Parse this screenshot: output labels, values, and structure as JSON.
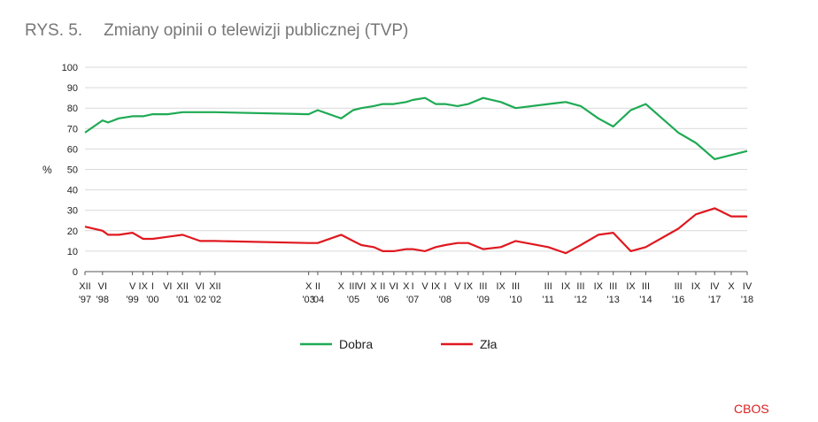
{
  "figure_label": "RYS. 5.",
  "title": "Zmiany opinii o telewizji publicznej (TVP)",
  "source": "CBOS",
  "colors": {
    "good": "#1faa54",
    "bad": "#e0181f",
    "grid": "#d9d9d9",
    "axis": "#555555",
    "title": "#777777",
    "text": "#222222"
  },
  "chart_data": {
    "type": "line",
    "title": "Zmiany opinii o telewizji publicznej (TVP)",
    "ylabel": "%",
    "ylim": [
      0,
      100
    ],
    "yticks": [
      0,
      10,
      20,
      30,
      40,
      50,
      60,
      70,
      80,
      90,
      100
    ],
    "x_range": [
      1997.92,
      2018.29
    ],
    "x_tick_labels": [
      {
        "x": 1997.92,
        "month": "XII",
        "year": "'97"
      },
      {
        "x": 1998.46,
        "month": "VI",
        "year": "'98"
      },
      {
        "x": 1999.38,
        "month": "V",
        "year": "'99"
      },
      {
        "x": 1999.71,
        "month": "IX",
        "year": ""
      },
      {
        "x": 2000.0,
        "month": "I",
        "year": "'00"
      },
      {
        "x": 2000.46,
        "month": "VI",
        "year": ""
      },
      {
        "x": 2000.92,
        "month": "XII",
        "year": "'01"
      },
      {
        "x": 2001.46,
        "month": "VI",
        "year": "'02"
      },
      {
        "x": 2001.92,
        "month": "XII",
        "year": "'02"
      },
      {
        "x": 2004.8,
        "month": "X",
        "year": "'03"
      },
      {
        "x": 2005.08,
        "month": "II",
        "year": "'04"
      },
      {
        "x": 2005.8,
        "month": "X",
        "year": ""
      },
      {
        "x": 2006.17,
        "month": "III",
        "year": "'05"
      },
      {
        "x": 2006.42,
        "month": "VI",
        "year": ""
      },
      {
        "x": 2006.8,
        "month": "X",
        "year": ""
      },
      {
        "x": 2007.08,
        "month": "II",
        "year": "'06"
      },
      {
        "x": 2007.42,
        "month": "VI",
        "year": ""
      },
      {
        "x": 2007.8,
        "month": "X",
        "year": ""
      },
      {
        "x": 2008.0,
        "month": "I",
        "year": "'07"
      },
      {
        "x": 2008.38,
        "month": "V",
        "year": ""
      },
      {
        "x": 2008.71,
        "month": "IX",
        "year": ""
      },
      {
        "x": 2009.0,
        "month": "I",
        "year": "'08"
      },
      {
        "x": 2009.38,
        "month": "V",
        "year": ""
      },
      {
        "x": 2009.71,
        "month": "IX",
        "year": ""
      },
      {
        "x": 2010.17,
        "month": "III",
        "year": "'09"
      },
      {
        "x": 2010.71,
        "month": "IX",
        "year": ""
      },
      {
        "x": 2011.17,
        "month": "III",
        "year": "'10"
      },
      {
        "x": 2012.17,
        "month": "III",
        "year": "'11"
      },
      {
        "x": 2012.71,
        "month": "IX",
        "year": ""
      },
      {
        "x": 2013.17,
        "month": "III",
        "year": "'12"
      },
      {
        "x": 2013.71,
        "month": "IX",
        "year": ""
      },
      {
        "x": 2014.17,
        "month": "III",
        "year": "'13"
      },
      {
        "x": 2014.71,
        "month": "IX",
        "year": ""
      },
      {
        "x": 2015.17,
        "month": "III",
        "year": "'14"
      },
      {
        "x": 2016.17,
        "month": "III",
        "year": "'16"
      },
      {
        "x": 2016.71,
        "month": "IX",
        "year": ""
      },
      {
        "x": 2017.29,
        "month": "IV",
        "year": "'17"
      },
      {
        "x": 2017.8,
        "month": "X",
        "year": ""
      },
      {
        "x": 2018.29,
        "month": "IV",
        "year": "'18"
      }
    ],
    "series": [
      {
        "name": "Dobra",
        "color": "#1faa54",
        "points": [
          [
            1997.92,
            68
          ],
          [
            1998.46,
            74
          ],
          [
            1998.63,
            73
          ],
          [
            1998.96,
            75
          ],
          [
            1999.38,
            76
          ],
          [
            1999.71,
            76
          ],
          [
            2000.0,
            77
          ],
          [
            2000.46,
            77
          ],
          [
            2000.92,
            78
          ],
          [
            2001.46,
            78
          ],
          [
            2001.92,
            78
          ],
          [
            2004.8,
            77
          ],
          [
            2005.08,
            79
          ],
          [
            2005.8,
            75
          ],
          [
            2006.17,
            79
          ],
          [
            2006.42,
            80
          ],
          [
            2006.8,
            81
          ],
          [
            2007.08,
            82
          ],
          [
            2007.42,
            82
          ],
          [
            2007.8,
            83
          ],
          [
            2008.0,
            84
          ],
          [
            2008.38,
            85
          ],
          [
            2008.71,
            82
          ],
          [
            2009.0,
            82
          ],
          [
            2009.38,
            81
          ],
          [
            2009.71,
            82
          ],
          [
            2010.17,
            85
          ],
          [
            2010.71,
            83
          ],
          [
            2011.17,
            80
          ],
          [
            2012.17,
            82
          ],
          [
            2012.71,
            83
          ],
          [
            2013.17,
            81
          ],
          [
            2013.71,
            75
          ],
          [
            2014.17,
            71
          ],
          [
            2014.71,
            79
          ],
          [
            2015.17,
            82
          ],
          [
            2016.17,
            68
          ],
          [
            2016.71,
            63
          ],
          [
            2017.29,
            55
          ],
          [
            2018.29,
            59
          ]
        ]
      },
      {
        "name": "Zła",
        "color": "#e0181f",
        "points": [
          [
            1997.92,
            22
          ],
          [
            1998.46,
            20
          ],
          [
            1998.63,
            18
          ],
          [
            1998.96,
            18
          ],
          [
            1999.38,
            19
          ],
          [
            1999.71,
            16
          ],
          [
            2000.0,
            16
          ],
          [
            2000.46,
            17
          ],
          [
            2000.92,
            18
          ],
          [
            2001.46,
            15
          ],
          [
            2001.92,
            15
          ],
          [
            2004.8,
            14
          ],
          [
            2005.08,
            14
          ],
          [
            2005.8,
            18
          ],
          [
            2006.17,
            15
          ],
          [
            2006.42,
            13
          ],
          [
            2006.8,
            12
          ],
          [
            2007.08,
            10
          ],
          [
            2007.42,
            10
          ],
          [
            2007.8,
            11
          ],
          [
            2008.0,
            11
          ],
          [
            2008.38,
            10
          ],
          [
            2008.71,
            12
          ],
          [
            2009.0,
            13
          ],
          [
            2009.38,
            14
          ],
          [
            2009.71,
            14
          ],
          [
            2010.17,
            11
          ],
          [
            2010.71,
            12
          ],
          [
            2011.17,
            15
          ],
          [
            2012.17,
            12
          ],
          [
            2012.71,
            9
          ],
          [
            2013.17,
            13
          ],
          [
            2013.71,
            18
          ],
          [
            2014.17,
            19
          ],
          [
            2014.71,
            10
          ],
          [
            2015.17,
            12
          ],
          [
            2016.17,
            21
          ],
          [
            2016.71,
            28
          ],
          [
            2017.29,
            31
          ],
          [
            2017.8,
            27
          ],
          [
            2018.29,
            27
          ]
        ]
      }
    ],
    "legend": {
      "position": "bottom-center",
      "items": [
        "Dobra",
        "Zła"
      ]
    }
  }
}
